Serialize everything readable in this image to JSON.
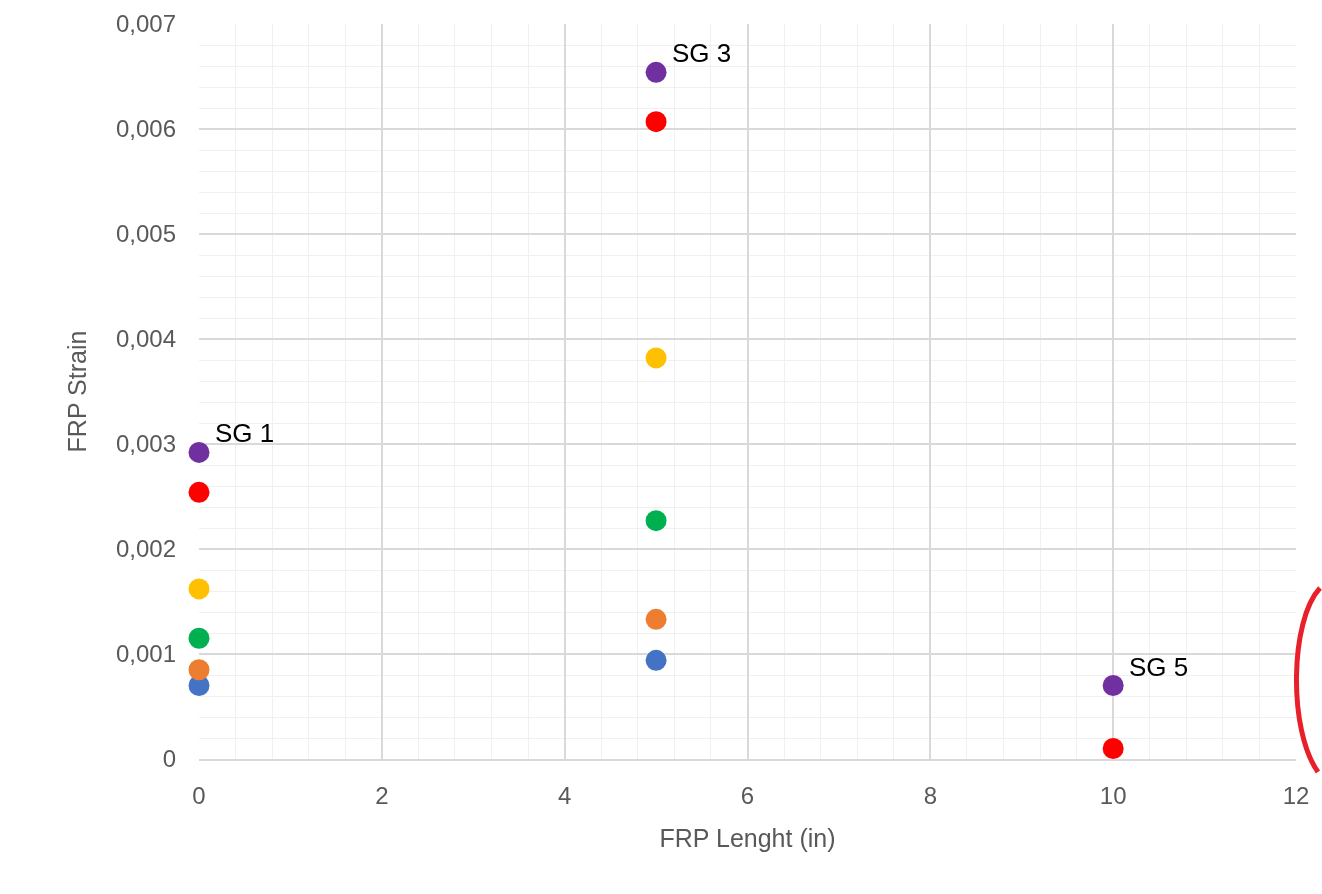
{
  "chart_data": {
    "type": "scatter",
    "xlabel": "FRP Lenght (in)",
    "ylabel": "FRP Strain",
    "x": [
      0,
      5,
      10
    ],
    "series": [
      {
        "color": "#4472c4",
        "values": [
          0.0007,
          0.00094,
          null
        ]
      },
      {
        "color": "#ed7d31",
        "values": [
          0.00085,
          0.00133,
          null
        ]
      },
      {
        "color": "#ffc000",
        "values": [
          0.00162,
          0.00382,
          null
        ]
      },
      {
        "color": "#00b050",
        "values": [
          0.00115,
          0.00227,
          null
        ]
      },
      {
        "color": "#ff0000",
        "values": [
          0.00254,
          0.00607,
          0.0001
        ]
      },
      {
        "color": "#7030a0",
        "values": [
          0.00292,
          0.00654,
          0.0007
        ]
      }
    ],
    "xlim": [
      0,
      12
    ],
    "xticks": [
      0,
      2,
      4,
      6,
      8,
      10,
      12
    ],
    "ylim": [
      0,
      0.007
    ],
    "yticks": [
      {
        "value": 0,
        "label": "0"
      },
      {
        "value": 0.001,
        "label": "0,001"
      },
      {
        "value": 0.002,
        "label": "0,002"
      },
      {
        "value": 0.003,
        "label": "0,003"
      },
      {
        "value": 0.004,
        "label": "0,004"
      },
      {
        "value": 0.005,
        "label": "0,005"
      },
      {
        "value": 0.006,
        "label": "0,006"
      },
      {
        "value": 0.007,
        "label": "0,007"
      }
    ],
    "annotations": [
      {
        "text": "SG 1",
        "x": 0,
        "y": 0.00292
      },
      {
        "text": "SG 3",
        "x": 5,
        "y": 0.00654
      },
      {
        "text": "SG 5",
        "x": 10,
        "y": 0.0007
      }
    ],
    "grid": true,
    "marker": "circle"
  }
}
